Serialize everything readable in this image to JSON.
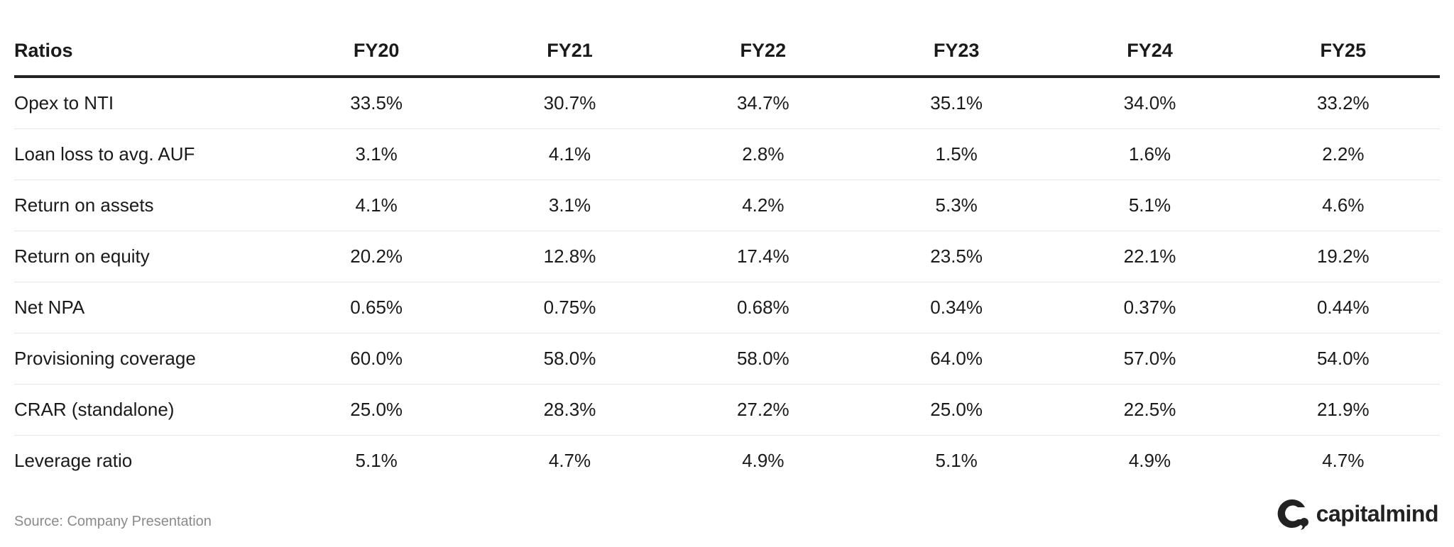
{
  "table": {
    "header_label": "Ratios",
    "years": [
      "FY20",
      "FY21",
      "FY22",
      "FY23",
      "FY24",
      "FY25"
    ],
    "rows": [
      {
        "label": "Opex to NTI",
        "values": [
          "33.5%",
          "30.7%",
          "34.7%",
          "35.1%",
          "34.0%",
          "33.2%"
        ]
      },
      {
        "label": "Loan loss to avg. AUF",
        "values": [
          "3.1%",
          "4.1%",
          "2.8%",
          "1.5%",
          "1.6%",
          "2.2%"
        ]
      },
      {
        "label": "Return on assets",
        "values": [
          "4.1%",
          "3.1%",
          "4.2%",
          "5.3%",
          "5.1%",
          "4.6%"
        ]
      },
      {
        "label": "Return on equity",
        "values": [
          "20.2%",
          "12.8%",
          "17.4%",
          "23.5%",
          "22.1%",
          "19.2%"
        ]
      },
      {
        "label": "Net NPA",
        "values": [
          "0.65%",
          "0.75%",
          "0.68%",
          "0.34%",
          "0.37%",
          "0.44%"
        ]
      },
      {
        "label": "Provisioning coverage",
        "values": [
          "60.0%",
          "58.0%",
          "58.0%",
          "64.0%",
          "57.0%",
          "54.0%"
        ]
      },
      {
        "label": "CRAR (standalone)",
        "values": [
          "25.0%",
          "28.3%",
          "27.2%",
          "25.0%",
          "22.5%",
          "21.9%"
        ]
      },
      {
        "label": "Leverage ratio",
        "values": [
          "5.1%",
          "4.7%",
          "4.9%",
          "5.1%",
          "4.9%",
          "4.7%"
        ]
      }
    ]
  },
  "footer": {
    "source": "Source: Company Presentation",
    "brand": "capitalmind",
    "brand_icon": "capitalmind-logo-icon"
  },
  "colors": {
    "text": "#1a1a1a",
    "header_rule": "#222222",
    "row_divider": "#e6e6e6",
    "source_text": "#8a8a8a"
  }
}
